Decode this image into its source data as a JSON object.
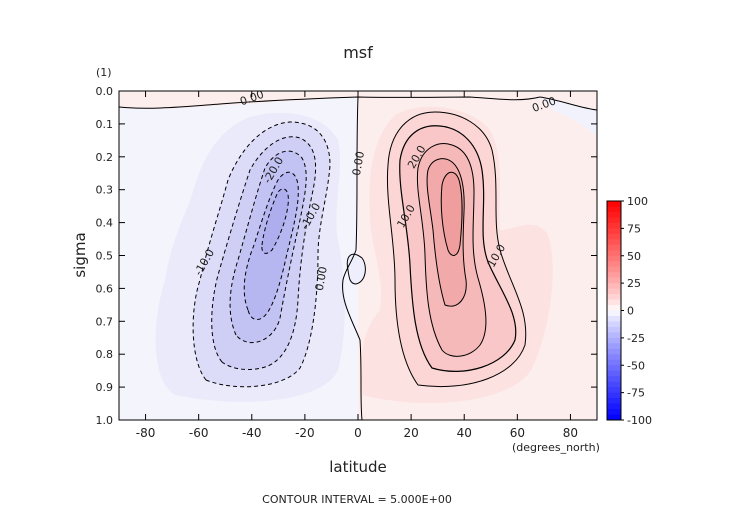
{
  "chart_data": {
    "type": "contour",
    "title": "msf",
    "variable_units": "(1)",
    "xlabel": "latitude",
    "x_units": "(degrees_north)",
    "ylabel": "sigma",
    "xlim": [
      -90,
      90
    ],
    "ylim": [
      0.0,
      1.0
    ],
    "y_inverted": true,
    "x_ticks": [
      -80,
      -60,
      -40,
      -20,
      0,
      20,
      40,
      60,
      80
    ],
    "y_ticks": [
      "0.0",
      "0.1",
      "0.2",
      "0.3",
      "0.4",
      "0.5",
      "0.6",
      "0.7",
      "0.8",
      "0.9",
      "1.0"
    ],
    "contour_interval_label": "CONTOUR INTERVAL = 5.000E+00",
    "contour_labels": [
      {
        "text": "0.00",
        "lat": -40,
        "sigma": 0.02
      },
      {
        "text": "0.00",
        "lat": 70,
        "sigma": 0.04
      },
      {
        "text": "0.00",
        "lat": 0,
        "sigma": 0.22
      },
      {
        "text": "0.00",
        "lat": -14,
        "sigma": 0.57
      },
      {
        "text": "-10.0",
        "lat": -58,
        "sigma": 0.52
      },
      {
        "text": "-20.0",
        "lat": -32,
        "sigma": 0.24
      },
      {
        "text": "-10.0",
        "lat": -18,
        "sigma": 0.38
      },
      {
        "text": "20.0",
        "lat": 22,
        "sigma": 0.2
      },
      {
        "text": "10.0",
        "lat": 18,
        "sigma": 0.38
      },
      {
        "text": "10.0",
        "lat": 52,
        "sigma": 0.5
      }
    ],
    "extrema": [
      {
        "sign": "negative",
        "lat": -32,
        "sigma": 0.45,
        "value": -28
      },
      {
        "sign": "positive",
        "lat": 30,
        "sigma": 0.35,
        "value": 32
      }
    ],
    "colorbar": {
      "min": -100,
      "max": 100,
      "step": 25,
      "tick_labels": [
        "100",
        "75",
        "50",
        "25",
        "0",
        "-25",
        "-50",
        "-75",
        "-100"
      ]
    },
    "colors": {
      "positive_max": "#ff0000",
      "negative_max": "#0000ff",
      "neutral": "#ffffff",
      "line": "#000000"
    }
  }
}
